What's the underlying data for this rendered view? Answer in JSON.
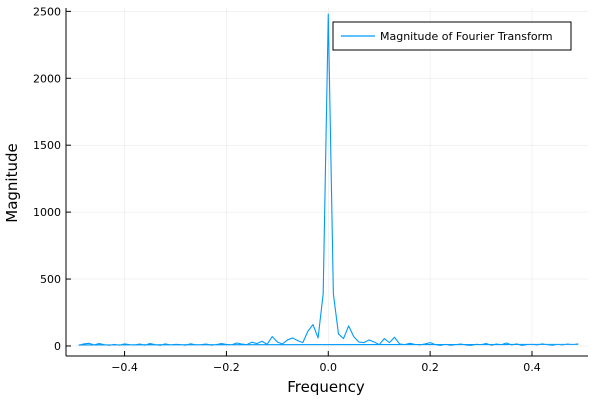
{
  "chart_data": {
    "type": "line",
    "title": "",
    "xlabel": "Frequency",
    "ylabel": "Magnitude",
    "xlim": [
      -0.515,
      0.51
    ],
    "ylim": [
      -75,
      2525
    ],
    "xticks": [
      -0.4,
      -0.2,
      0.0,
      0.2,
      0.4
    ],
    "xtick_labels": [
      "−0.4",
      "−0.2",
      "0.0",
      "0.2",
      "0.4"
    ],
    "yticks": [
      0,
      500,
      1000,
      1500,
      2000,
      2500
    ],
    "ytick_labels": [
      "0",
      "500",
      "1000",
      "1500",
      "2000",
      "2500"
    ],
    "grid": true,
    "legend": "top-right",
    "series": [
      {
        "name": "Magnitude of Fourier Transform",
        "color": "#009AFA",
        "x": [
          -0.49,
          -0.48,
          -0.47,
          -0.46,
          -0.45,
          -0.44,
          -0.43,
          -0.42,
          -0.41,
          -0.4,
          -0.39,
          -0.38,
          -0.37,
          -0.36,
          -0.35,
          -0.34,
          -0.33,
          -0.32,
          -0.31,
          -0.3,
          -0.29,
          -0.28,
          -0.27,
          -0.26,
          -0.25,
          -0.24,
          -0.23,
          -0.22,
          -0.21,
          -0.2,
          -0.19,
          -0.18,
          -0.17,
          -0.16,
          -0.15,
          -0.14,
          -0.13,
          -0.12,
          -0.11,
          -0.1,
          -0.09,
          -0.08,
          -0.07,
          -0.06,
          -0.05,
          -0.04,
          -0.03,
          -0.02,
          -0.01,
          0.0,
          0.01,
          0.02,
          0.03,
          0.04,
          0.05,
          0.06,
          0.07,
          0.08,
          0.09,
          0.1,
          0.11,
          0.12,
          0.13,
          0.14,
          0.15,
          0.16,
          0.17,
          0.18,
          0.19,
          0.2,
          0.21,
          0.22,
          0.23,
          0.24,
          0.25,
          0.26,
          0.27,
          0.28,
          0.29,
          0.3,
          0.31,
          0.32,
          0.33,
          0.34,
          0.35,
          0.36,
          0.37,
          0.38,
          0.39,
          0.4,
          0.41,
          0.42,
          0.43,
          0.44,
          0.45,
          0.46,
          0.47,
          0.48,
          0.49,
          0.49,
          -0.49
        ],
        "values": [
          5,
          15,
          20,
          8,
          18,
          10,
          5,
          12,
          6,
          15,
          10,
          8,
          14,
          6,
          18,
          10,
          5,
          15,
          8,
          12,
          10,
          6,
          16,
          8,
          10,
          14,
          6,
          10,
          18,
          12,
          8,
          22,
          14,
          10,
          28,
          18,
          35,
          12,
          70,
          30,
          15,
          45,
          60,
          40,
          25,
          110,
          160,
          60,
          390,
          2480,
          390,
          90,
          55,
          150,
          70,
          30,
          25,
          45,
          30,
          10,
          55,
          25,
          65,
          15,
          10,
          20,
          12,
          8,
          15,
          25,
          10,
          5,
          12,
          6,
          10,
          14,
          8,
          5,
          12,
          10,
          18,
          6,
          14,
          10,
          22,
          8,
          15,
          5,
          10,
          12,
          8,
          15,
          10,
          6,
          12,
          8,
          14,
          10,
          15,
          12,
          8
        ]
      }
    ]
  }
}
